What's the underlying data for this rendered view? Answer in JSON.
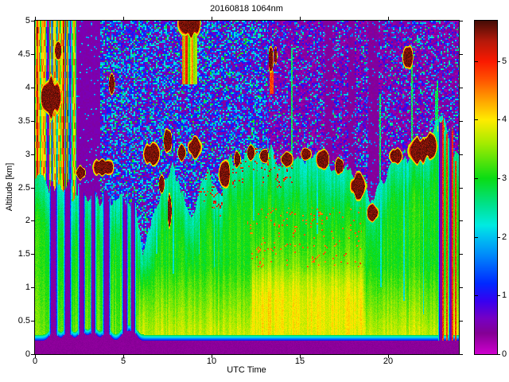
{
  "figure": {
    "background": "#ffffff",
    "title": "20160818 1064nm"
  },
  "chart_data": {
    "type": "heatmap",
    "title": "20160818 1064nm",
    "xlabel": "UTC Time",
    "ylabel": "Altitude [km]",
    "xlim": [
      0,
      24
    ],
    "ylim": [
      0,
      5
    ],
    "x_ticks": [
      0,
      5,
      10,
      15,
      20
    ],
    "x_tick_labels": [
      "0",
      "5",
      "10",
      "15",
      "20"
    ],
    "y_ticks": [
      0,
      0.5,
      1,
      1.5,
      2,
      2.5,
      3,
      3.5,
      4,
      4.5,
      5
    ],
    "y_tick_labels": [
      "0",
      "0.5",
      "1",
      "1.5",
      "2",
      "2.5",
      "3",
      "3.5",
      "4",
      "4.5",
      "5"
    ],
    "grid": false,
    "colorbar": {
      "min": 0,
      "max": 5.69,
      "ticks": [
        0,
        1,
        2,
        3,
        4,
        5
      ],
      "tick_labels": [
        "0",
        "1",
        "2",
        "3",
        "4",
        "5"
      ],
      "position": "right"
    },
    "colormap_name": "jet-extended-magenta",
    "colormap_stops": [
      [
        0.0,
        205,
        0,
        205
      ],
      [
        0.35,
        132,
        0,
        148
      ],
      [
        0.6,
        118,
        0,
        195
      ],
      [
        0.9,
        55,
        0,
        240
      ],
      [
        1.2,
        0,
        40,
        255
      ],
      [
        1.7,
        0,
        140,
        250
      ],
      [
        2.0,
        0,
        195,
        240
      ],
      [
        2.2,
        0,
        235,
        225
      ],
      [
        2.55,
        0,
        225,
        140
      ],
      [
        3.0,
        10,
        220,
        20
      ],
      [
        3.6,
        165,
        235,
        0
      ],
      [
        4.0,
        255,
        235,
        0
      ],
      [
        4.3,
        255,
        170,
        0
      ],
      [
        4.7,
        255,
        80,
        0
      ],
      [
        5.0,
        250,
        25,
        0
      ],
      [
        5.35,
        180,
        25,
        10
      ],
      [
        5.69,
        70,
        12,
        6
      ]
    ],
    "features": {
      "surface_attenuation_band_km": [
        0,
        0.2
      ],
      "boundary_layer": "green aerosol (value 3-4) from 0.25 km up to a top that rises from ~1.5 km at 06 UTC to ~3-3.4 km from 12-24 UTC; yellow/orange (4-4.6) below 1.5 km in the afternoon",
      "rain_shafts_utc": [
        1.05,
        1.85,
        2.65,
        3.3,
        4.05,
        5.1,
        5.55,
        23.0,
        23.55
      ],
      "cloud_tops": "dark-red clouds (>5) capping the aerosol layer at 2.5-3.4 km from 06-24 UTC; mid-level clouds near 3.8-4.6 km at 01, 04, 13.5 and 21 UTC; high cloud near 5 km at 08:45 UTC",
      "clear_air": "magenta/purple background with blue-cyan speckle noise above the aerosol top; solid purple attenuated column 2.4-3.6 UTC above 2.5 km; colorful streaks 0-2.3 UTC above 2.5 km"
    },
    "model": {
      "vmax": 5.69,
      "bottom_band": {
        "top_km": 0.2,
        "value": 0.28,
        "hump_height": 0.13
      },
      "surface_edge": {
        "thickness_km": 0.09,
        "v0": 1.0,
        "v1": 2.9
      },
      "aerosol_profile": [
        [
          0,
          2.55
        ],
        [
          1,
          2.5
        ],
        [
          2,
          2.42
        ],
        [
          2.5,
          2.38
        ],
        [
          3,
          2.35
        ],
        [
          4,
          2.35
        ],
        [
          5,
          2.3
        ],
        [
          5.7,
          2.2
        ],
        [
          6.1,
          1.55
        ],
        [
          6.6,
          1.9
        ],
        [
          7.2,
          2.45
        ],
        [
          7.8,
          2.75
        ],
        [
          8.3,
          2.6
        ],
        [
          8.8,
          2.15
        ],
        [
          9.3,
          2.3
        ],
        [
          9.8,
          2.65
        ],
        [
          10.4,
          2.45
        ],
        [
          11,
          2.85
        ],
        [
          11.7,
          2.95
        ],
        [
          12.5,
          3.0
        ],
        [
          13.5,
          2.95
        ],
        [
          14.5,
          2.95
        ],
        [
          15.5,
          3.0
        ],
        [
          16.5,
          2.9
        ],
        [
          17.5,
          2.8
        ],
        [
          18.2,
          2.55
        ],
        [
          19,
          2.3
        ],
        [
          19.6,
          2.55
        ],
        [
          20.2,
          2.9
        ],
        [
          21,
          3.05
        ],
        [
          22,
          3.15
        ],
        [
          22.6,
          3.35
        ],
        [
          23.1,
          3.5
        ],
        [
          23.6,
          3.15
        ],
        [
          24,
          3.0
        ]
      ],
      "green_base": 3.05,
      "col_variation": 0.22,
      "pixel_noise": 0.26,
      "low_yellow": {
        "z_limit": 1.35,
        "gain": 0.9,
        "t_start": 5.8,
        "early_factor": 0.45
      },
      "afternoon_orange": {
        "t0": 12.3,
        "t1": 18.6,
        "z_center": 0.95,
        "z_sigma": 0.65,
        "gain": 0.55
      },
      "teal_top": {
        "sigma": 0.5,
        "gain": 0.6
      },
      "red_speckles": {
        "t0": 9.2,
        "t1": 14.6,
        "depth": 0.35,
        "prob": 0.12,
        "v": 4.5,
        "spread": 1.1
      },
      "orange_speckles": {
        "t0": 12.0,
        "t1": 18.5,
        "z0": 1.3,
        "z1": 2.2,
        "prob": 0.06,
        "v": 4.3,
        "spread": 0.6
      },
      "rain_columns": [
        [
          1.05,
          0.2,
          2.5
        ],
        [
          1.85,
          0.18,
          2.45
        ],
        [
          2.65,
          0.16,
          2.4
        ],
        [
          3.3,
          0.12,
          2.35
        ],
        [
          4.05,
          0.18,
          2.35
        ],
        [
          5.1,
          0.14,
          2.3
        ],
        [
          5.55,
          0.12,
          2.25
        ]
      ],
      "late_columns": [
        [
          22.98,
          0.1,
          3.45
        ],
        [
          23.55,
          0.08,
          3.3
        ]
      ],
      "red_lines": [
        [
          23.33,
          0.035,
          3.3
        ],
        [
          23.82,
          0.03,
          2.9
        ]
      ],
      "streak_zone": {
        "t_max": 2.35,
        "palette_thresholds": [
          0.13,
          0.3,
          0.48,
          0.68,
          0.85
        ],
        "palette_values": [
          0.5,
          1.6,
          2.6,
          3.3,
          4.3,
          5.1
        ],
        "vert_noise": 0.5
      },
      "purple_zone": {
        "t0": 2.35,
        "t1": 3.68,
        "value": 0.42,
        "speck_prob": 0.035
      },
      "noise_early": {
        "t_max": 13.2,
        "bins": [
          [
            0.4,
            0.28,
            0.4
          ],
          [
            0.7,
            0.85,
            0.6
          ],
          [
            0.92,
            1.7,
            0.6
          ],
          [
            1.01,
            2.4,
            0.7
          ]
        ]
      },
      "noise_late": {
        "bins": [
          [
            0.6,
            0.17,
            0.35
          ],
          [
            0.82,
            0.65,
            0.5
          ],
          [
            0.95,
            1.45,
            0.7
          ],
          [
            1.01,
            2.3,
            0.5
          ]
        ]
      },
      "dark_cols": [
        [
          16.65,
          0.2
        ],
        [
          17.9,
          0.18
        ],
        [
          19.15,
          0.3
        ]
      ],
      "bright_lines": [
        [
          14.55,
          4.6
        ],
        [
          19.55,
          3.9
        ],
        [
          21.35,
          4.4
        ],
        [
          22.68,
          3.95
        ],
        [
          22.8,
          4.1
        ]
      ],
      "gap_lines": [
        [
          6.9,
          1.5
        ],
        [
          7.85,
          1.2
        ],
        [
          9.3,
          1.5
        ],
        [
          10.15,
          1.3
        ],
        [
          12.4,
          2.0
        ],
        [
          16.0,
          1.8
        ],
        [
          19.6,
          1.0
        ],
        [
          20.9,
          0.8
        ],
        [
          22.0,
          0.6
        ]
      ],
      "clouds": [
        [
          0.85,
          3.85,
          0.5,
          0.25
        ],
        [
          1.3,
          4.55,
          0.2,
          0.12
        ],
        [
          4.35,
          4.05,
          0.18,
          0.13
        ],
        [
          3.8,
          2.8,
          0.55,
          0.12
        ],
        [
          2.6,
          2.72,
          0.25,
          0.09
        ],
        [
          6.6,
          3.0,
          0.38,
          0.14
        ],
        [
          7.5,
          3.2,
          0.22,
          0.17
        ],
        [
          7.15,
          2.55,
          0.17,
          0.14
        ],
        [
          7.62,
          2.15,
          0.1,
          0.2
        ],
        [
          8.3,
          3.02,
          0.2,
          0.1
        ],
        [
          9.05,
          3.1,
          0.28,
          0.13
        ],
        [
          8.75,
          4.97,
          0.5,
          0.18
        ],
        [
          10.7,
          2.7,
          0.3,
          0.18
        ],
        [
          11.45,
          2.92,
          0.17,
          0.1
        ],
        [
          12.2,
          3.02,
          0.2,
          0.09
        ],
        [
          13.0,
          2.97,
          0.25,
          0.1
        ],
        [
          13.35,
          4.42,
          0.13,
          0.2
        ],
        [
          13.62,
          4.48,
          0.09,
          0.12
        ],
        [
          14.2,
          2.92,
          0.3,
          0.1
        ],
        [
          15.3,
          3.0,
          0.25,
          0.1
        ],
        [
          16.3,
          2.92,
          0.3,
          0.12
        ],
        [
          17.25,
          2.82,
          0.25,
          0.1
        ],
        [
          18.3,
          2.52,
          0.4,
          0.16
        ],
        [
          19.1,
          2.12,
          0.25,
          0.1
        ],
        [
          20.4,
          2.97,
          0.3,
          0.11
        ],
        [
          21.1,
          4.45,
          0.22,
          0.15
        ],
        [
          21.7,
          3.05,
          0.55,
          0.17
        ],
        [
          22.35,
          3.12,
          0.4,
          0.16
        ],
        [
          23.0,
          3.38,
          0.18,
          0.1
        ]
      ],
      "cloud_value": 5.4,
      "cirrus_streaks": [
        {
          "t": 8.75,
          "half_width": 0.42,
          "z0": 4.05,
          "z1": 4.85,
          "hot": false
        },
        {
          "t": 13.4,
          "half_width": 0.1,
          "z0": 3.9,
          "z1": 4.25,
          "hot": true
        }
      ]
    }
  }
}
